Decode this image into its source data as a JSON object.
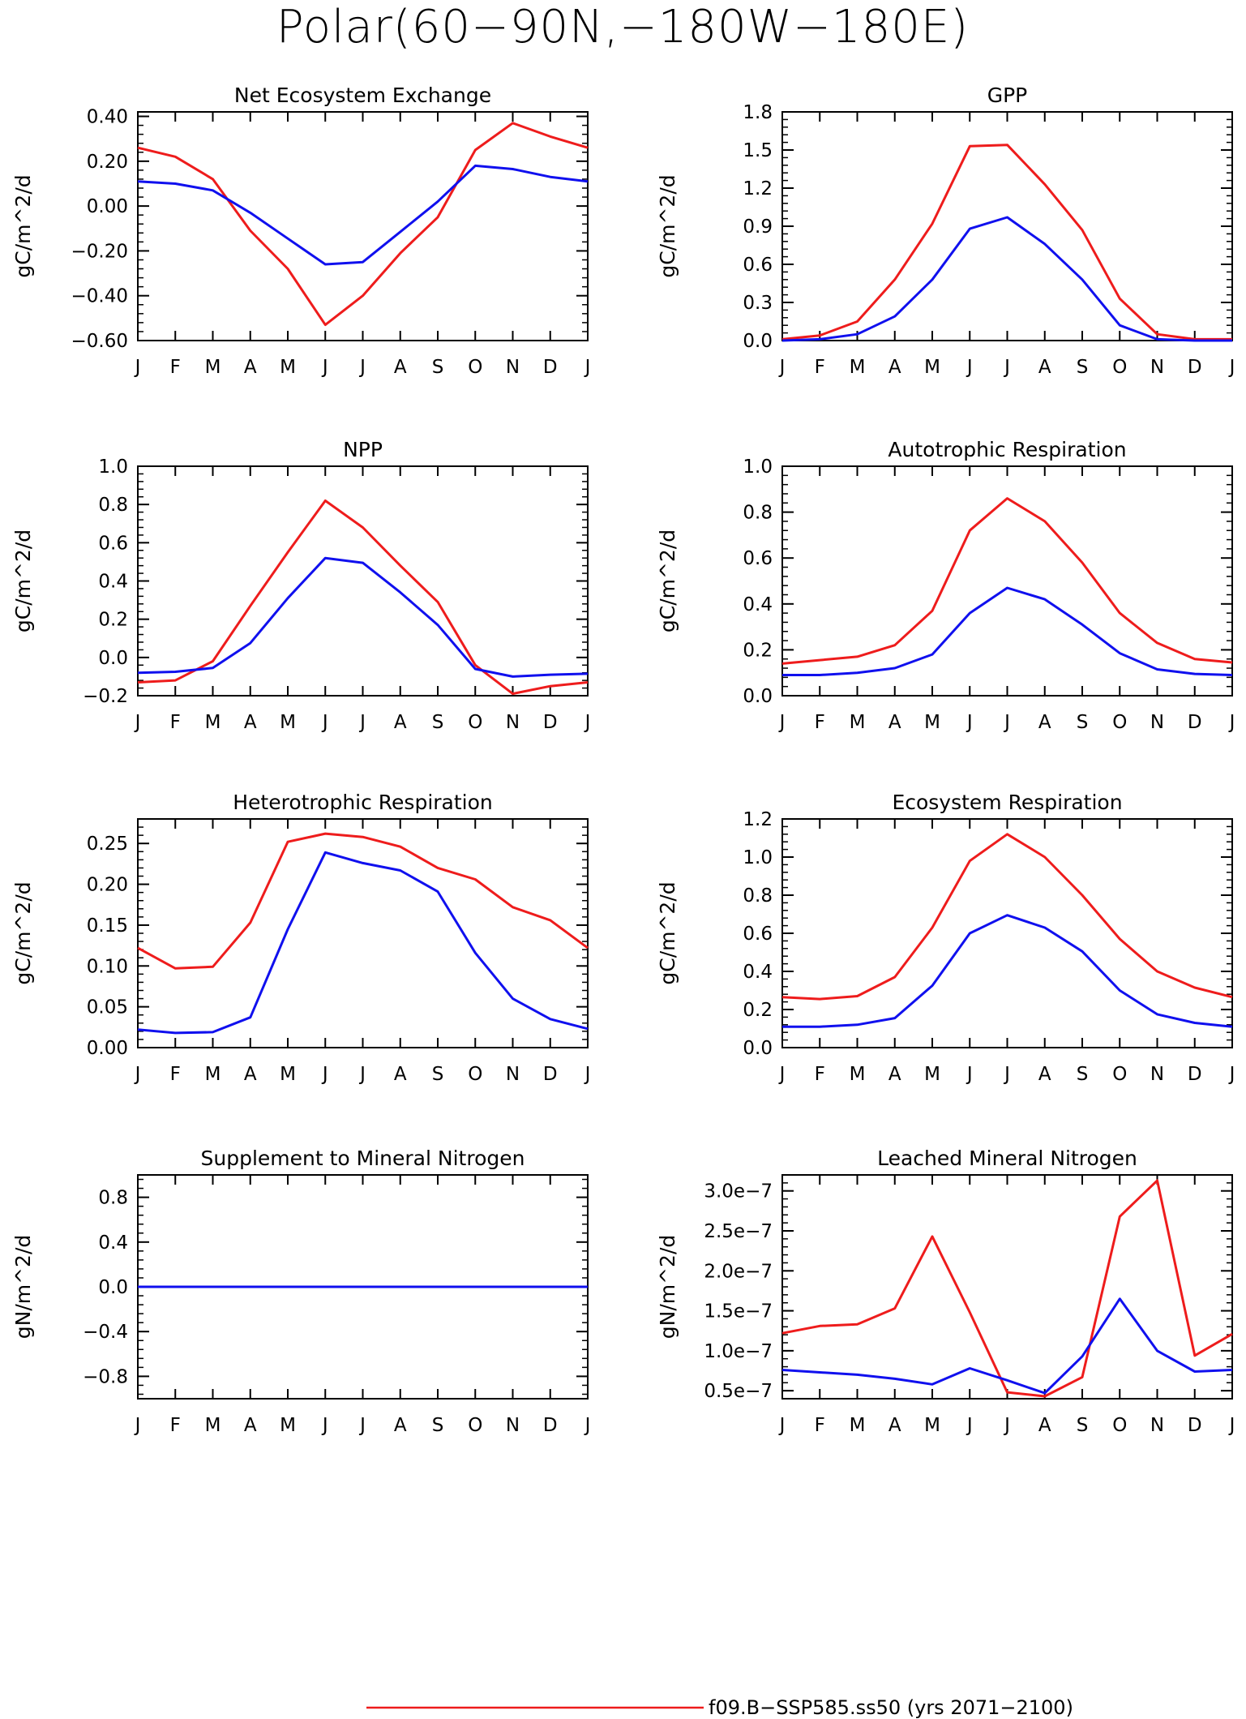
{
  "figure_title": "Polar(60−90N,−180W−180E)",
  "colors": {
    "series_1": "#ee1c1c",
    "series_2": "#1010ee"
  },
  "legend": [
    {
      "label": "f09.B−SSP585.ss50 (yrs 2071−2100)",
      "color": "#ee1c1c"
    }
  ],
  "chart_data": [
    {
      "type": "line",
      "title": "Net Ecosystem Exchange",
      "ylabel": "gC/m^2/d",
      "x": [
        "J",
        "F",
        "M",
        "A",
        "M",
        "J",
        "J",
        "A",
        "S",
        "O",
        "N",
        "D",
        "J"
      ],
      "ylim": [
        -0.6,
        0.42
      ],
      "yticks": [
        -0.6,
        -0.4,
        -0.2,
        0.0,
        0.2,
        0.4
      ],
      "yticklabels": [
        "−0.60",
        "−0.40",
        "−0.20",
        "0.00",
        "0.20",
        "0.40"
      ],
      "series": [
        {
          "color": "#ee1c1c",
          "values": [
            0.26,
            0.22,
            0.12,
            -0.11,
            -0.28,
            -0.53,
            -0.4,
            -0.21,
            -0.05,
            0.25,
            0.37,
            0.31,
            0.26
          ]
        },
        {
          "color": "#1010ee",
          "values": [
            0.11,
            0.1,
            0.07,
            -0.03,
            -0.145,
            -0.26,
            -0.25,
            -0.115,
            0.02,
            0.18,
            0.165,
            0.13,
            0.11
          ]
        }
      ]
    },
    {
      "type": "line",
      "title": "GPP",
      "ylabel": "gC/m^2/d",
      "x": [
        "J",
        "F",
        "M",
        "A",
        "M",
        "J",
        "J",
        "A",
        "S",
        "O",
        "N",
        "D",
        "J"
      ],
      "ylim": [
        0,
        1.8
      ],
      "yticks": [
        0,
        0.3,
        0.6,
        0.9,
        1.2,
        1.5,
        1.8
      ],
      "yticklabels": [
        "0.0",
        "0.3",
        "0.6",
        "0.9",
        "1.2",
        "1.5",
        "1.8"
      ],
      "series": [
        {
          "color": "#ee1c1c",
          "values": [
            0.01,
            0.04,
            0.15,
            0.48,
            0.92,
            1.53,
            1.54,
            1.23,
            0.87,
            0.33,
            0.05,
            0.01,
            0.01
          ]
        },
        {
          "color": "#1010ee",
          "values": [
            0.0,
            0.01,
            0.05,
            0.19,
            0.48,
            0.88,
            0.97,
            0.76,
            0.48,
            0.12,
            0.01,
            0.0,
            0.0
          ]
        }
      ]
    },
    {
      "type": "line",
      "title": "NPP",
      "ylabel": "gC/m^2/d",
      "x": [
        "J",
        "F",
        "M",
        "A",
        "M",
        "J",
        "J",
        "A",
        "S",
        "O",
        "N",
        "D",
        "J"
      ],
      "ylim": [
        -0.2,
        1.0
      ],
      "yticks": [
        -0.2,
        0,
        0.2,
        0.4,
        0.6,
        0.8,
        1.0
      ],
      "yticklabels": [
        "−0.2",
        "0.0",
        "0.2",
        "0.4",
        "0.6",
        "0.8",
        "1.0"
      ],
      "series": [
        {
          "color": "#ee1c1c",
          "values": [
            -0.13,
            -0.12,
            -0.02,
            0.27,
            0.55,
            0.82,
            0.68,
            0.48,
            0.29,
            -0.04,
            -0.19,
            -0.15,
            -0.13
          ]
        },
        {
          "color": "#1010ee",
          "values": [
            -0.08,
            -0.075,
            -0.055,
            0.075,
            0.31,
            0.52,
            0.495,
            0.34,
            0.17,
            -0.06,
            -0.1,
            -0.09,
            -0.085
          ]
        }
      ]
    },
    {
      "type": "line",
      "title": "Autotrophic Respiration",
      "ylabel": "gC/m^2/d",
      "x": [
        "J",
        "F",
        "M",
        "A",
        "M",
        "J",
        "J",
        "A",
        "S",
        "O",
        "N",
        "D",
        "J"
      ],
      "ylim": [
        0,
        1.0
      ],
      "yticks": [
        0,
        0.2,
        0.4,
        0.6,
        0.8,
        1.0
      ],
      "yticklabels": [
        "0.0",
        "0.2",
        "0.4",
        "0.6",
        "0.8",
        "1.0"
      ],
      "series": [
        {
          "color": "#ee1c1c",
          "values": [
            0.14,
            0.155,
            0.17,
            0.22,
            0.37,
            0.72,
            0.86,
            0.76,
            0.58,
            0.36,
            0.23,
            0.16,
            0.145
          ]
        },
        {
          "color": "#1010ee",
          "values": [
            0.09,
            0.09,
            0.1,
            0.12,
            0.18,
            0.36,
            0.47,
            0.42,
            0.31,
            0.185,
            0.115,
            0.095,
            0.09
          ]
        }
      ]
    },
    {
      "type": "line",
      "title": "Heterotrophic Respiration",
      "ylabel": "gC/m^2/d",
      "x": [
        "J",
        "F",
        "M",
        "A",
        "M",
        "J",
        "J",
        "A",
        "S",
        "O",
        "N",
        "D",
        "J"
      ],
      "ylim": [
        0,
        0.28
      ],
      "yticks": [
        0,
        0.05,
        0.1,
        0.15,
        0.2,
        0.25
      ],
      "yticklabels": [
        "0.00",
        "0.05",
        "0.10",
        "0.15",
        "0.20",
        "0.25"
      ],
      "series": [
        {
          "color": "#ee1c1c",
          "values": [
            0.122,
            0.097,
            0.099,
            0.153,
            0.252,
            0.262,
            0.258,
            0.246,
            0.22,
            0.206,
            0.172,
            0.156,
            0.122
          ]
        },
        {
          "color": "#1010ee",
          "values": [
            0.022,
            0.018,
            0.019,
            0.037,
            0.145,
            0.239,
            0.226,
            0.217,
            0.191,
            0.116,
            0.06,
            0.035,
            0.023
          ]
        }
      ]
    },
    {
      "type": "line",
      "title": "Ecosystem Respiration",
      "ylabel": "gC/m^2/d",
      "x": [
        "J",
        "F",
        "M",
        "A",
        "M",
        "J",
        "J",
        "A",
        "S",
        "O",
        "N",
        "D",
        "J"
      ],
      "ylim": [
        0,
        1.2
      ],
      "yticks": [
        0,
        0.2,
        0.4,
        0.6,
        0.8,
        1.0,
        1.2
      ],
      "yticklabels": [
        "0.0",
        "0.2",
        "0.4",
        "0.6",
        "0.8",
        "1.0",
        "1.2"
      ],
      "series": [
        {
          "color": "#ee1c1c",
          "values": [
            0.265,
            0.255,
            0.27,
            0.37,
            0.63,
            0.98,
            1.12,
            1.0,
            0.8,
            0.57,
            0.4,
            0.315,
            0.265
          ]
        },
        {
          "color": "#1010ee",
          "values": [
            0.11,
            0.11,
            0.12,
            0.155,
            0.325,
            0.6,
            0.695,
            0.63,
            0.505,
            0.3,
            0.175,
            0.13,
            0.11
          ]
        }
      ]
    },
    {
      "type": "line",
      "title": "Supplement to Mineral Nitrogen",
      "ylabel": "gN/m^2/d",
      "x": [
        "J",
        "F",
        "M",
        "A",
        "M",
        "J",
        "J",
        "A",
        "S",
        "O",
        "N",
        "D",
        "J"
      ],
      "ylim": [
        -1.0,
        1.0
      ],
      "yticks": [
        -0.8,
        -0.4,
        0,
        0.4,
        0.8
      ],
      "yticklabels": [
        "−0.8",
        "−0.4",
        "0.0",
        "0.4",
        "0.8"
      ],
      "series": [
        {
          "color": "#ee1c1c",
          "values": [
            0,
            0,
            0,
            0,
            0,
            0,
            0,
            0,
            0,
            0,
            0,
            0,
            0
          ]
        },
        {
          "color": "#1010ee",
          "values": [
            0,
            0,
            0,
            0,
            0,
            0,
            0,
            0,
            0,
            0,
            0,
            0,
            0
          ]
        }
      ]
    },
    {
      "type": "line",
      "title": "Leached Mineral Nitrogen",
      "ylabel": "gN/m^2/d",
      "x": [
        "J",
        "F",
        "M",
        "A",
        "M",
        "J",
        "J",
        "A",
        "S",
        "O",
        "N",
        "D",
        "J"
      ],
      "ylim": [
        4e-08,
        3.2e-07
      ],
      "yticks": [
        5e-08,
        1e-07,
        1.5e-07,
        2e-07,
        2.5e-07,
        3e-07
      ],
      "yticklabels": [
        "0.5e−7",
        "1.0e−7",
        "1.5e−7",
        "2.0e−7",
        "2.5e−7",
        "3.0e−7"
      ],
      "series": [
        {
          "color": "#ee1c1c",
          "values": [
            1.22e-07,
            1.31e-07,
            1.33e-07,
            1.53e-07,
            2.43e-07,
            1.48e-07,
            4.8e-08,
            4.3e-08,
            6.7e-08,
            2.68e-07,
            3.13e-07,
            9.4e-08,
            1.21e-07
          ]
        },
        {
          "color": "#1010ee",
          "values": [
            7.6e-08,
            7.3e-08,
            7e-08,
            6.5e-08,
            5.8e-08,
            7.8e-08,
            6.3e-08,
            4.7e-08,
            9.3e-08,
            1.65e-07,
            1e-07,
            7.4e-08,
            7.6e-08
          ]
        }
      ]
    }
  ]
}
